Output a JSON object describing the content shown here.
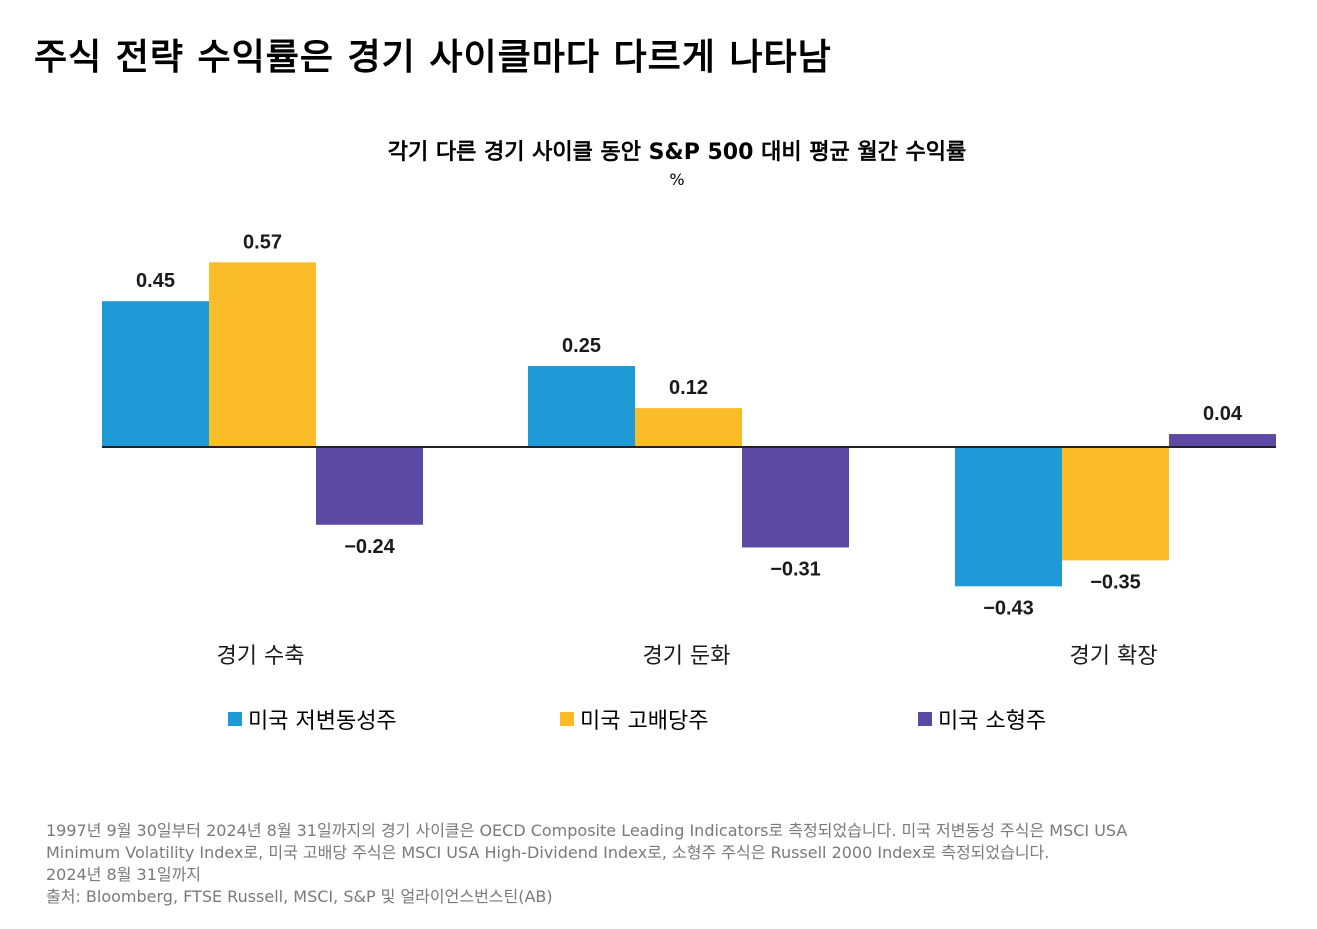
{
  "page_title": "주식 전략 수익률은 경기 사이클마다 다르게 나타남",
  "chart_data": {
    "type": "bar",
    "title": "각기 다른 경기 사이클 동안 S&P 500 대비 평균 월간 수익률",
    "unit": "%",
    "categories": [
      "경기 수축",
      "경기 둔화",
      "경기 확장"
    ],
    "series": [
      {
        "name": "미국 저변동성주",
        "color": "#1f9ad6",
        "values": [
          0.45,
          0.25,
          -0.43
        ],
        "labels": [
          "0.45",
          "0.25",
          "−0.43"
        ]
      },
      {
        "name": "미국 고배당주",
        "color": "#fbbc2a",
        "values": [
          0.57,
          0.12,
          -0.35
        ],
        "labels": [
          "0.57",
          "0.12",
          "−0.35"
        ]
      },
      {
        "name": "미국 소형주",
        "color": "#5b49a3",
        "values": [
          -0.24,
          -0.31,
          0.04
        ],
        "labels": [
          "−0.24",
          "−0.31",
          "0.04"
        ]
      }
    ],
    "legend_position": "bottom",
    "grid": false
  },
  "footnote": {
    "lines": [
      "1997년 9월 30일부터 2024년 8월 31일까지의 경기 사이클은 OECD Composite Leading Indicators로 측정되었습니다. 미국 저변동성 주식은 MSCI USA",
      "Minimum Volatility Index로, 미국 고배당 주식은 MSCI USA High-Dividend Index로, 소형주 주식은 Russell 2000 Index로 측정되었습니다.",
      "2024년 8월 31일까지",
      "출처: Bloomberg, FTSE Russell, MSCI, S&P 및 얼라이언스번스틴(AB)"
    ]
  }
}
